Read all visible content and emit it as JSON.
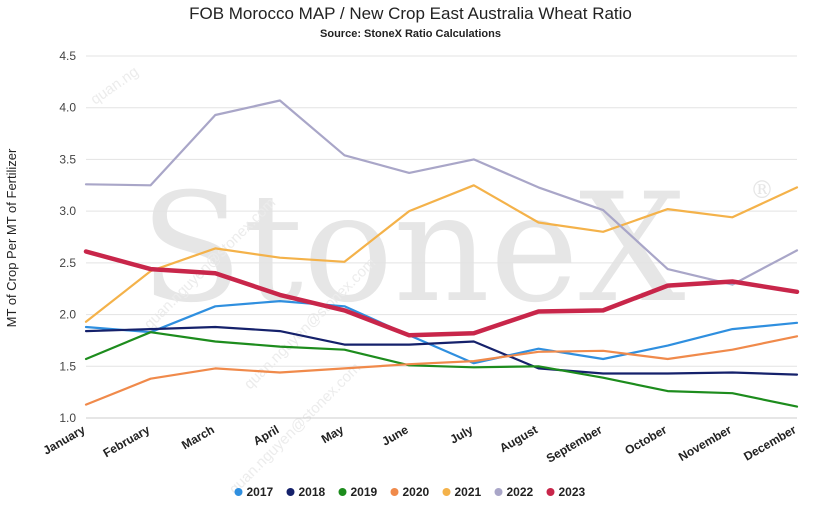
{
  "title": "FOB Morocco MAP / New Crop East Australia Wheat Ratio",
  "subtitle": "Source: StoneX Ratio Calculations",
  "watermark": {
    "logo_text": "StoneX",
    "registered": "®",
    "faint_text": [
      "quan.ng",
      "quan.nguyen@stonex.com",
      "quan.nguyen@stonex.com",
      "quan.nguyen@stonex.com"
    ]
  },
  "chart_data": {
    "type": "line",
    "title": "FOB Morocco MAP / New Crop East Australia Wheat Ratio",
    "subtitle": "Source: StoneX Ratio Calculations",
    "xlabel": "",
    "ylabel": "MT of Crop Per MT of Fertilizer",
    "ylim": [
      1.0,
      4.5
    ],
    "yticks": [
      "1.0",
      "1.5",
      "2.0",
      "2.5",
      "3.0",
      "3.5",
      "4.0",
      "4.5"
    ],
    "grid": true,
    "legend_position": "bottom",
    "categories": [
      "January",
      "February",
      "March",
      "April",
      "May",
      "June",
      "July",
      "August",
      "September",
      "October",
      "November",
      "December"
    ],
    "series": [
      {
        "name": "2017",
        "color": "#2f8fdf",
        "values": [
          1.88,
          1.83,
          2.08,
          2.13,
          2.08,
          1.8,
          1.53,
          1.67,
          1.57,
          1.7,
          1.86,
          1.92
        ]
      },
      {
        "name": "2018",
        "color": "#15216b",
        "values": [
          1.84,
          1.86,
          1.88,
          1.84,
          1.71,
          1.71,
          1.74,
          1.48,
          1.43,
          1.43,
          1.44,
          1.42
        ]
      },
      {
        "name": "2019",
        "color": "#1d8c1d",
        "values": [
          1.57,
          1.83,
          1.74,
          1.69,
          1.66,
          1.51,
          1.49,
          1.5,
          1.39,
          1.26,
          1.24,
          1.11
        ]
      },
      {
        "name": "2020",
        "color": "#f08a4b",
        "values": [
          1.13,
          1.38,
          1.48,
          1.44,
          1.48,
          1.52,
          1.55,
          1.64,
          1.65,
          1.57,
          1.66,
          1.79
        ]
      },
      {
        "name": "2021",
        "color": "#f4b24a",
        "values": [
          1.93,
          2.42,
          2.64,
          2.55,
          2.51,
          3.0,
          3.25,
          2.89,
          2.8,
          3.02,
          2.94,
          3.23
        ]
      },
      {
        "name": "2022",
        "color": "#a9a6c8",
        "values": [
          3.26,
          3.25,
          3.93,
          4.07,
          3.54,
          3.37,
          3.5,
          3.23,
          3.01,
          2.44,
          2.29,
          2.62
        ]
      },
      {
        "name": "2023",
        "color": "#c8264a",
        "values": [
          2.61,
          2.44,
          2.4,
          2.19,
          2.04,
          1.8,
          1.82,
          2.03,
          2.04,
          2.28,
          2.32,
          2.22
        ],
        "thick": true
      }
    ]
  }
}
